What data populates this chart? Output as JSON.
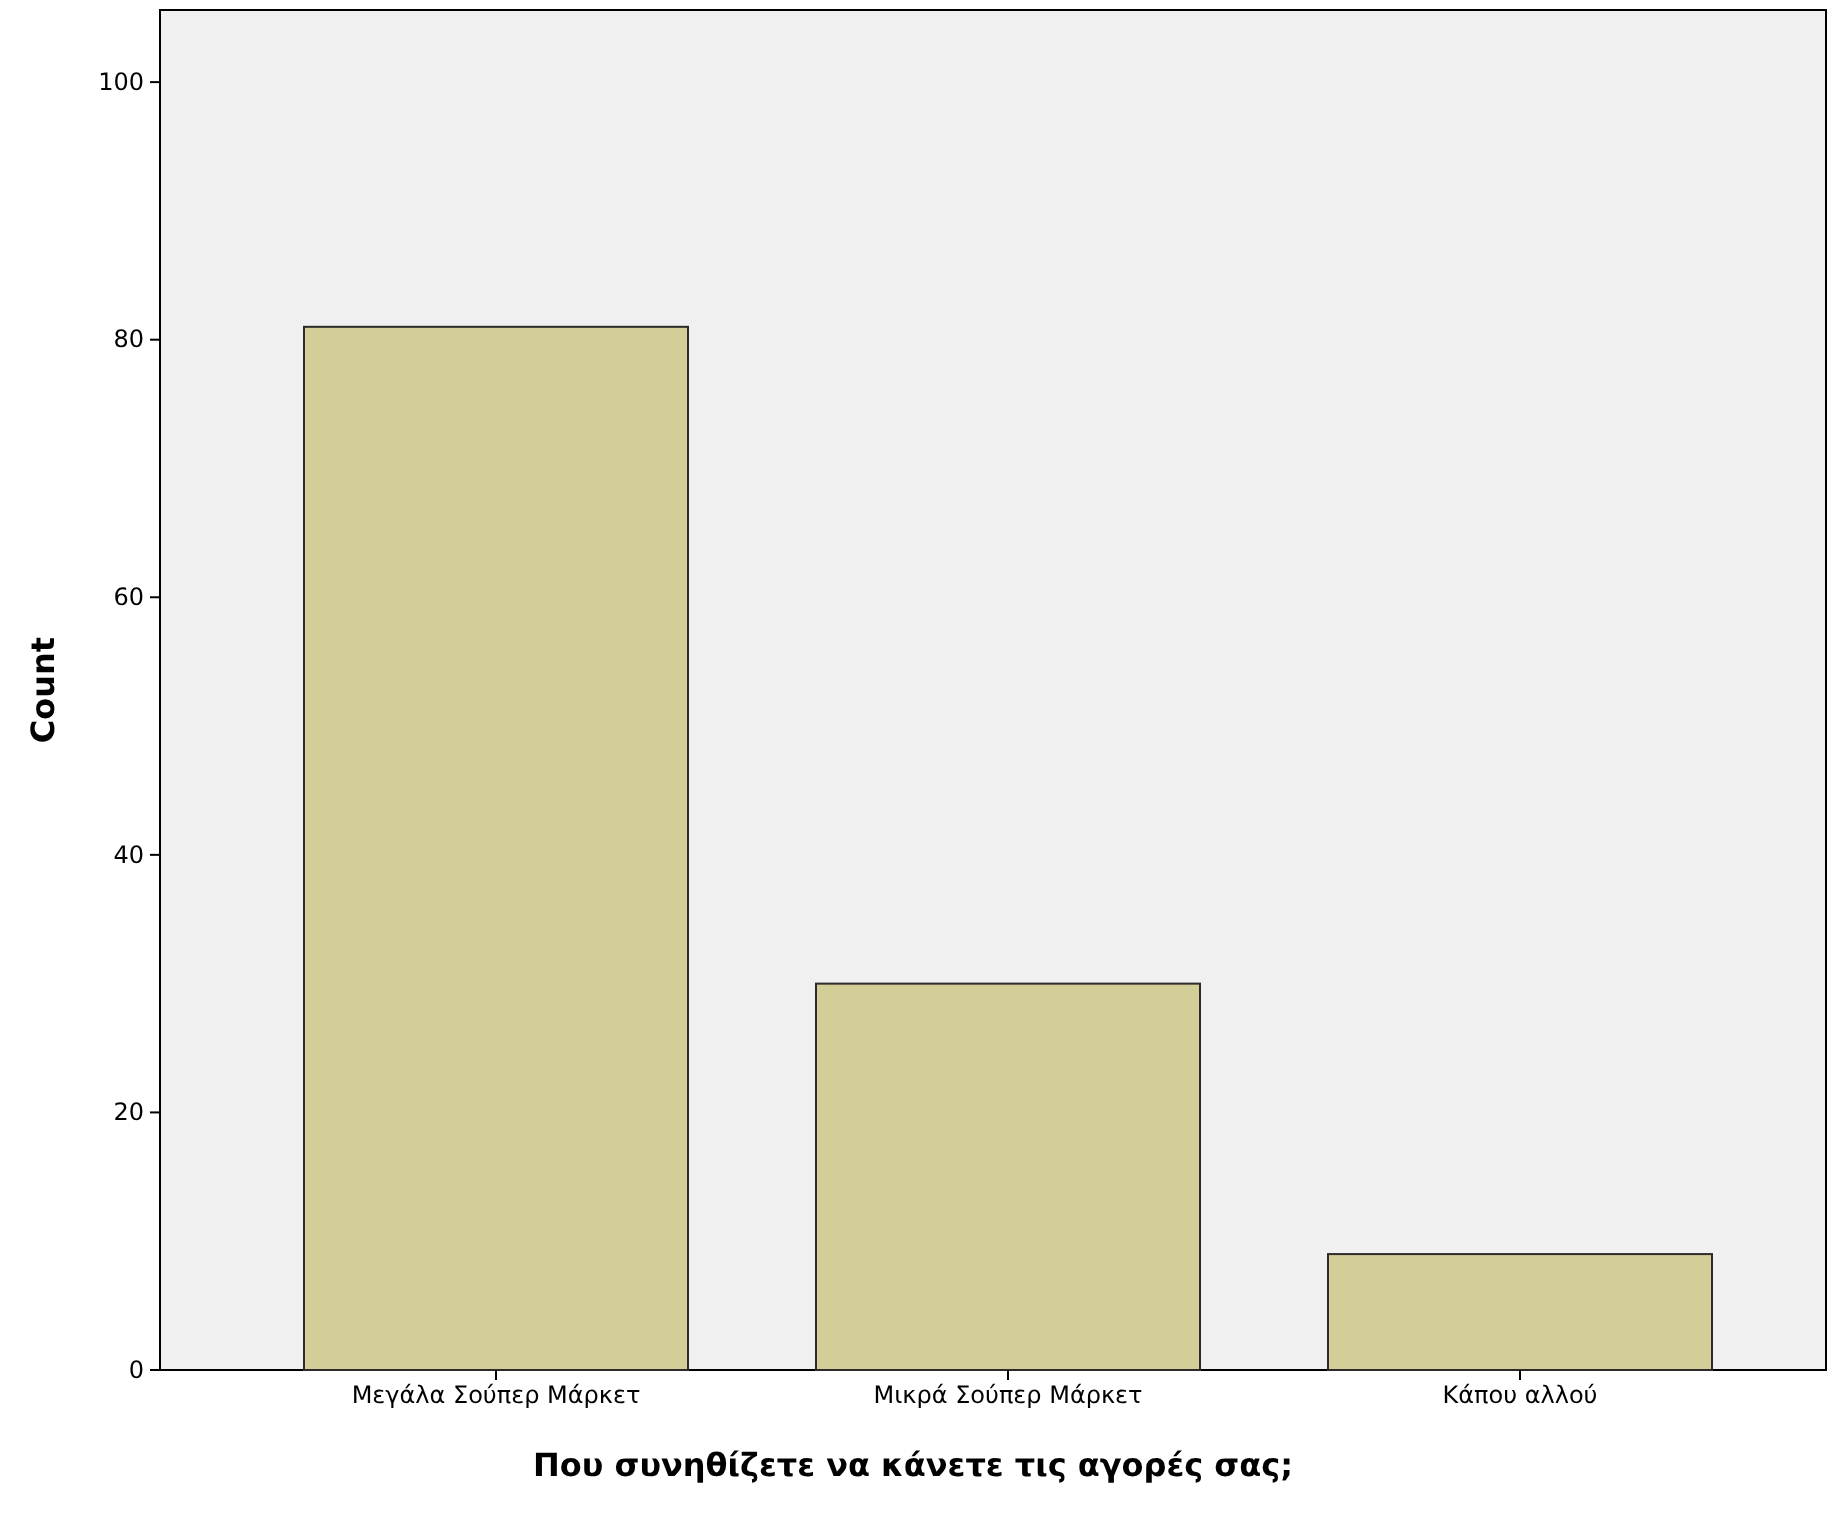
{
  "chart_data": {
    "type": "bar",
    "xlabel": "Που συνηθίζετε να κάνετε τις αγορές σας;",
    "ylabel": "Count",
    "categories": [
      "Μεγάλα Σούπερ Μάρκετ",
      "Μικρά Σούπερ Μάρκετ",
      "Κάπου αλλού"
    ],
    "values": [
      81,
      30,
      9
    ],
    "color": "#d3ce97",
    "ylim": [
      0,
      105.6
    ],
    "yticks": [
      0,
      20,
      40,
      60,
      80,
      100
    ],
    "grid": false
  }
}
